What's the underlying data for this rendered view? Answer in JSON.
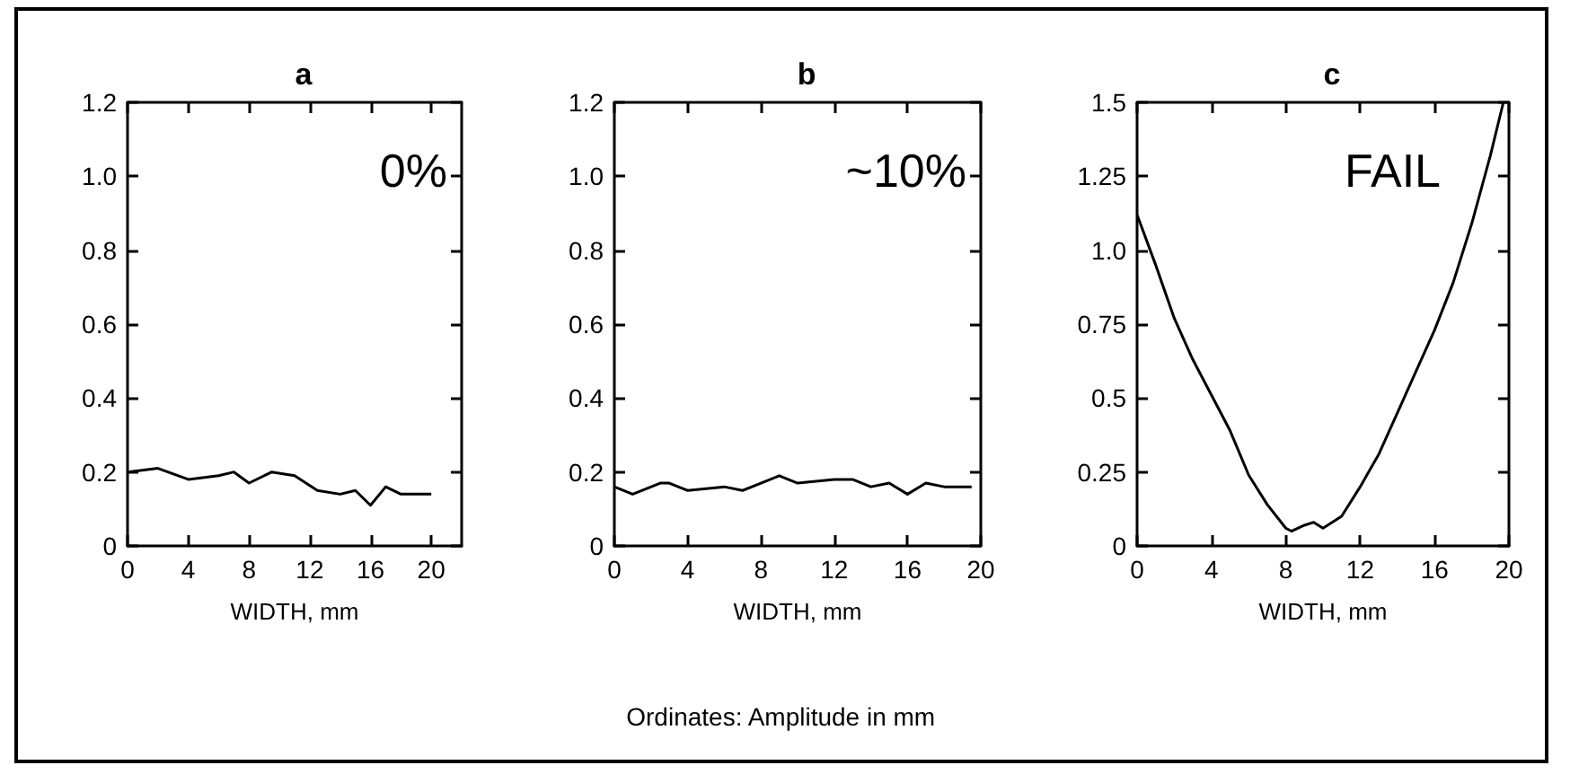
{
  "chart_data": [
    {
      "type": "line",
      "title": "a",
      "xlabel": "WIDTH, mm",
      "annotations": [
        "0%"
      ],
      "xlim": [
        0,
        22
      ],
      "xticks": [
        0,
        4,
        8,
        12,
        16,
        20
      ],
      "ylim": [
        0,
        1.2
      ],
      "yticks": [
        0,
        {
          "value": 0.2,
          "label": "0.2"
        },
        {
          "value": 0.4,
          "label": "0.4"
        },
        {
          "value": 0.6,
          "label": "0.6"
        },
        {
          "value": 0.8,
          "label": "0.8"
        },
        {
          "value": 1,
          "label": "1.0"
        },
        {
          "value": 1.2,
          "label": "1.2"
        }
      ],
      "series": [
        {
          "color": "#000000",
          "x": [
            0,
            2,
            4,
            6,
            7,
            8,
            9.5,
            11,
            12.5,
            14,
            15,
            16,
            17,
            18,
            19.3,
            20
          ],
          "values": [
            0.2,
            0.21,
            0.18,
            0.19,
            0.2,
            0.17,
            0.2,
            0.19,
            0.15,
            0.14,
            0.15,
            0.11,
            0.16,
            0.14,
            0.14,
            0.14
          ]
        }
      ]
    },
    {
      "type": "line",
      "title": "b",
      "xlabel": "WIDTH, mm",
      "annotations": [
        "~10%",
        "Ordinates: Amplitude in mm"
      ],
      "xlim": [
        0,
        20
      ],
      "xticks": [
        0,
        4,
        8,
        12,
        16,
        20
      ],
      "ylim": [
        0,
        1.2
      ],
      "yticks": [
        0,
        {
          "value": 0.2,
          "label": "0.2"
        },
        {
          "value": 0.4,
          "label": "0.4"
        },
        {
          "value": 0.6,
          "label": "0.6"
        },
        {
          "value": 0.8,
          "label": "0.8"
        },
        {
          "value": 1,
          "label": "1.0"
        },
        {
          "value": 1.2,
          "label": "1.2"
        }
      ],
      "series": [
        {
          "color": "#000000",
          "x": [
            0,
            1,
            2.5,
            3,
            4,
            6,
            7,
            8,
            9,
            10,
            12,
            13,
            14,
            15,
            16,
            17,
            18,
            19.5
          ],
          "values": [
            0.16,
            0.14,
            0.17,
            0.17,
            0.15,
            0.16,
            0.15,
            0.17,
            0.19,
            0.17,
            0.18,
            0.18,
            0.16,
            0.17,
            0.14,
            0.17,
            0.16,
            0.16
          ]
        }
      ]
    },
    {
      "type": "line",
      "title": "c",
      "xlabel": "WIDTH, mm",
      "annotations": [
        "FAIL"
      ],
      "xlim": [
        0,
        20
      ],
      "xticks": [
        0,
        4,
        8,
        12,
        16,
        20
      ],
      "ylim": [
        0,
        1.5
      ],
      "yticks": [
        0,
        0.25,
        0.5,
        0.75,
        {
          "value": 1,
          "label": "1.0"
        },
        1.25,
        1.5
      ],
      "series": [
        {
          "color": "#000000",
          "x": [
            0,
            1,
            2,
            3,
            4,
            5,
            6,
            7,
            8,
            8.3,
            9,
            9.5,
            10,
            11,
            12,
            13,
            14,
            15,
            16,
            17,
            18,
            19,
            19.7
          ],
          "values": [
            1.12,
            0.95,
            0.77,
            0.63,
            0.51,
            0.39,
            0.24,
            0.14,
            0.06,
            0.05,
            0.07,
            0.08,
            0.06,
            0.1,
            0.2,
            0.31,
            0.45,
            0.59,
            0.73,
            0.89,
            1.09,
            1.32,
            1.5
          ]
        }
      ]
    }
  ]
}
